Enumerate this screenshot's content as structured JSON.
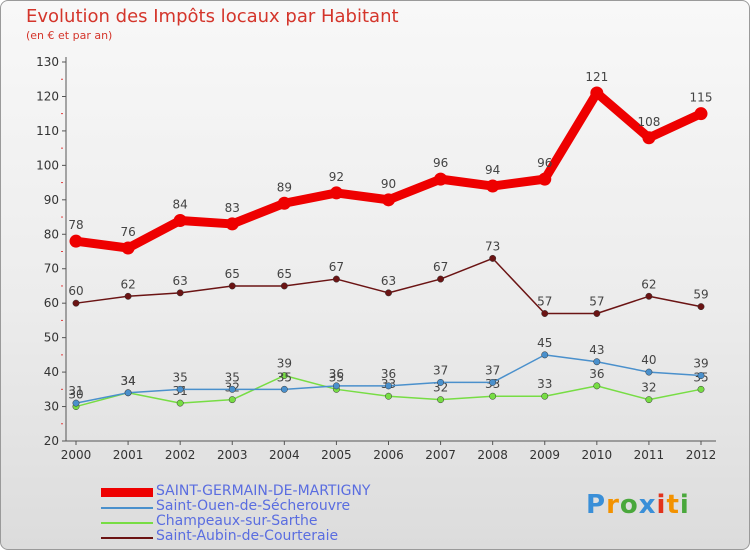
{
  "chart_data": {
    "type": "line",
    "title": "Evolution des Impôts locaux par Habitant",
    "subtitle": "(en € et par an)",
    "x": [
      "2000",
      "2001",
      "2002",
      "2003",
      "2004",
      "2005",
      "2006",
      "2007",
      "2008",
      "2009",
      "2010",
      "2011",
      "2012"
    ],
    "ylim": [
      20,
      130
    ],
    "yticks": [
      20,
      30,
      40,
      50,
      60,
      70,
      80,
      90,
      100,
      110,
      120,
      130
    ],
    "grid": false,
    "series": [
      {
        "name": "SAINT-GERMAIN-DE-MARTIGNY",
        "color": "#ee0000",
        "values": [
          78,
          76,
          84,
          83,
          89,
          92,
          90,
          96,
          94,
          96,
          121,
          108,
          115
        ]
      },
      {
        "name": "Saint-Ouen-de-Sécherouvre",
        "color": "#4a90cc",
        "values": [
          31,
          34,
          35,
          35,
          35,
          36,
          36,
          37,
          37,
          45,
          43,
          40,
          39
        ]
      },
      {
        "name": "Champeaux-sur-Sarthe",
        "color": "#77dd44",
        "values": [
          30,
          34,
          31,
          32,
          39,
          35,
          33,
          32,
          33,
          33,
          36,
          32,
          35
        ]
      },
      {
        "name": "Saint-Aubin-de-Courteraie",
        "color": "#6b1414",
        "values": [
          60,
          62,
          63,
          65,
          65,
          67,
          63,
          67,
          73,
          57,
          57,
          62,
          59
        ]
      }
    ]
  },
  "brand": {
    "text": "Proxiti",
    "colors": [
      "#3a8fd8",
      "#f39200",
      "#4aa83c",
      "#3a8fd8",
      "#e2331c",
      "#f39200",
      "#4aa83c"
    ]
  }
}
